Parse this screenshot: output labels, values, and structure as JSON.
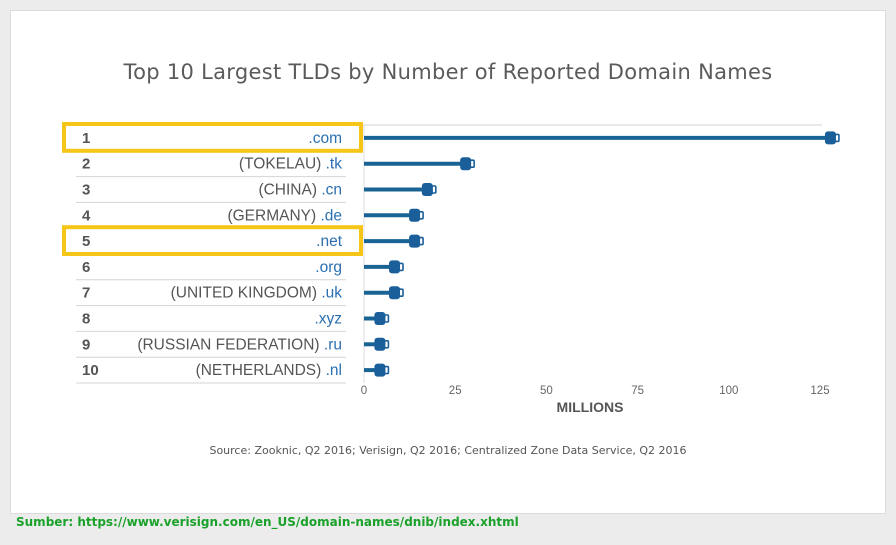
{
  "chart_data": {
    "type": "bar",
    "title": "Top 10 Largest TLDs by Number of Reported Domain Names",
    "xlabel": "MILLIONS",
    "xlim": [
      0,
      128
    ],
    "xticks": [
      0,
      25,
      50,
      75,
      100,
      125
    ],
    "ranks": [
      "1",
      "2",
      "3",
      "4",
      "5",
      "6",
      "7",
      "8",
      "9",
      "10"
    ],
    "countries": [
      "",
      "(TOKELAU)",
      "(CHINA)",
      "(GERMANY)",
      "",
      "",
      "(UNITED KINGDOM)",
      "",
      "(RUSSIAN FEDERATION)",
      "(NETHERLANDS)"
    ],
    "tlds": [
      ".com",
      ".tk",
      ".cn",
      ".de",
      ".net",
      ".org",
      ".uk",
      ".xyz",
      ".ru",
      ".nl"
    ],
    "values": [
      128,
      28,
      17.5,
      14,
      14,
      8.5,
      8.5,
      4.5,
      4.5,
      4.5
    ],
    "highlighted_ranks": [
      "1",
      "5"
    ],
    "colors": {
      "bar": "#1a6495",
      "cap": "#1a5f9a",
      "highlight": "#f5c518",
      "tld": "#2a6fb0",
      "label": "#555555"
    }
  },
  "source": "Source: Zooknic, Q2 2016; Verisign, Q2 2016; Centralized Zone Data Service, Q2 2016",
  "footer": "Sumber: https://www.verisign.com/en_US/domain-names/dnib/index.xhtml"
}
